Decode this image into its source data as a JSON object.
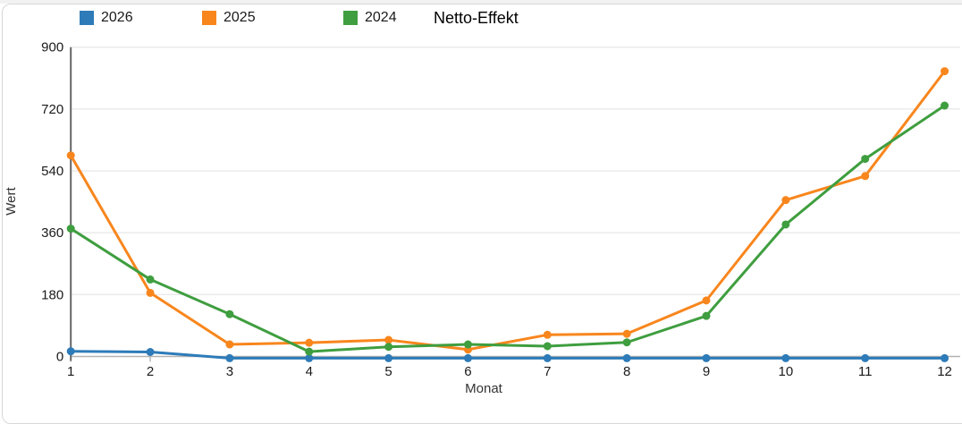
{
  "page": {
    "top_strip_color": "#f2f2f2",
    "card_border_color": "#d8d8d8",
    "card_background": "#ffffff"
  },
  "chart_data": {
    "type": "line",
    "title": "Netto-Effekt",
    "xlabel": "Monat",
    "ylabel": "Wert",
    "x": [
      1,
      2,
      3,
      4,
      5,
      6,
      7,
      8,
      9,
      10,
      11,
      12
    ],
    "yticks": [
      0,
      180,
      360,
      540,
      720,
      900
    ],
    "ylim": [
      0,
      900
    ],
    "grid": true,
    "legend_position": "top",
    "series": [
      {
        "name": "2026",
        "color": "#2d7bb8",
        "values": [
          15,
          13,
          -5,
          -5,
          -5,
          -5,
          -5,
          -5,
          -5,
          -5,
          -5,
          -5
        ]
      },
      {
        "name": "2025",
        "color": "#f8861d",
        "values": [
          585,
          185,
          35,
          40,
          48,
          20,
          63,
          66,
          163,
          455,
          525,
          830
        ]
      },
      {
        "name": "2024",
        "color": "#3f9e3f",
        "values": [
          372,
          224,
          123,
          14,
          28,
          35,
          30,
          41,
          118,
          384,
          575,
          730
        ]
      }
    ],
    "style": {
      "y_axis_color": "#666666",
      "x_axis_color": "#b3b3b3",
      "grid_color": "#e9e9e9",
      "tick_text_color": "#1a1a1a",
      "axis_label_color": "#333333"
    }
  }
}
